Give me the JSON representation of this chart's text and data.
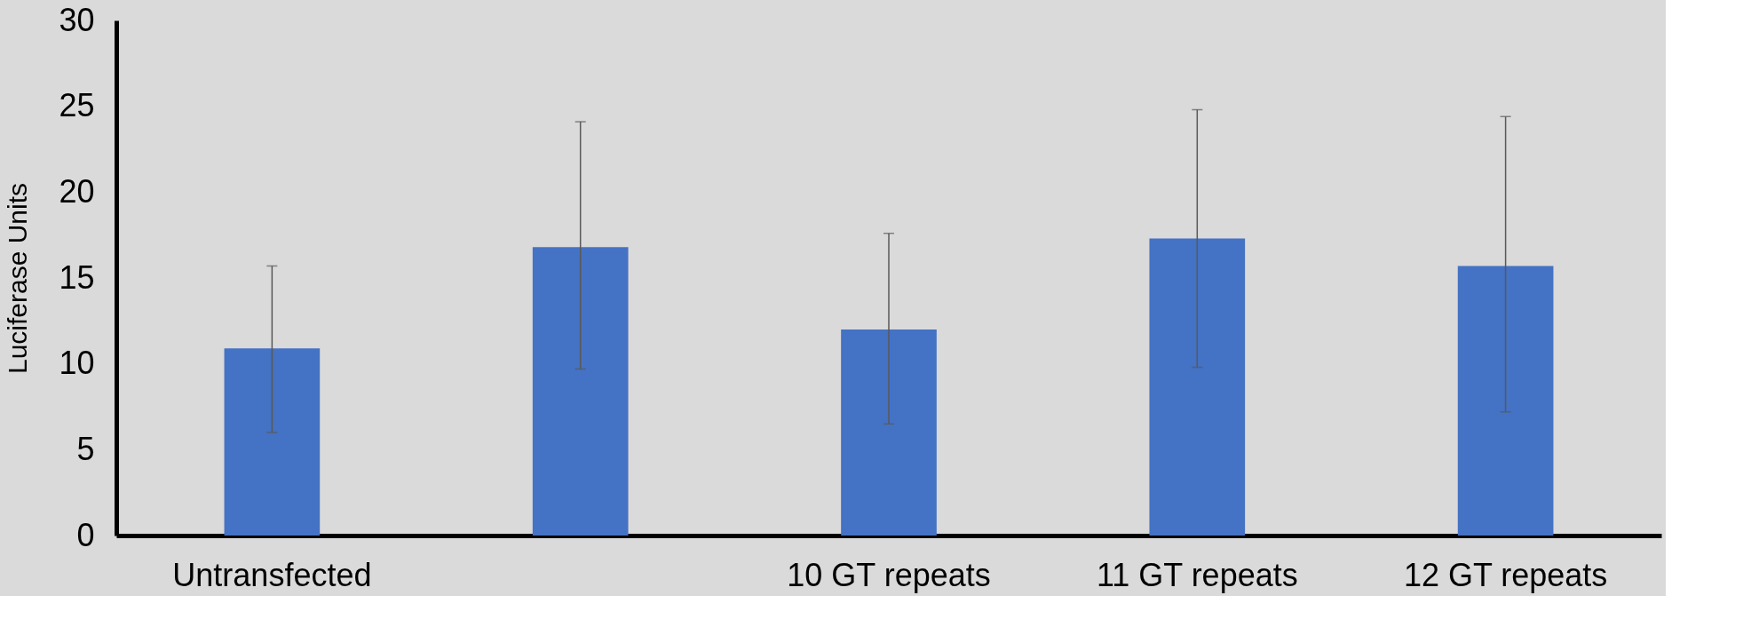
{
  "chart_data": {
    "type": "bar",
    "ylabel": "Luciferase Units",
    "categories": [
      "Untransfected",
      null,
      "10 GT repeats",
      "11 GT repeats",
      "12 GT repeats"
    ],
    "values": [
      10.9,
      16.8,
      12.0,
      17.3,
      15.7
    ],
    "errors": [
      [
        6.0,
        15.7
      ],
      [
        9.7,
        24.1
      ],
      [
        6.5,
        17.6
      ],
      [
        9.8,
        24.8
      ],
      [
        7.2,
        24.4
      ]
    ],
    "color": "#4472c4",
    "ylim": [
      0,
      30
    ],
    "yticks": [
      0,
      5,
      10,
      15,
      20,
      25,
      30
    ]
  }
}
